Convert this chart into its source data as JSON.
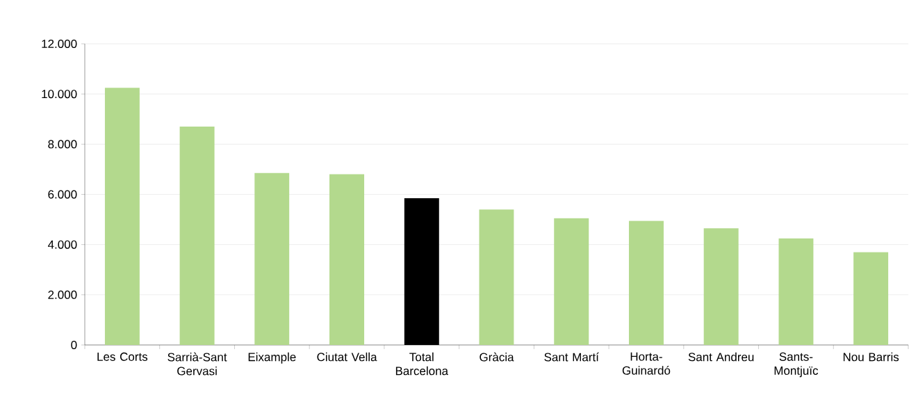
{
  "chart_data": {
    "type": "bar",
    "categories": [
      "Les Corts",
      "Sarrià-Sant Gervasi",
      "Eixample",
      "Ciutat Vella",
      "Total Barcelona",
      "Gràcia",
      "Sant Martí",
      "Horta-Guinardó",
      "Sant Andreu",
      "Sants-Montjuïc",
      "Nou Barris"
    ],
    "values": [
      10250,
      8700,
      6850,
      6800,
      5850,
      5400,
      5050,
      4950,
      4650,
      4250,
      3700
    ],
    "colors": [
      "#b3d98d",
      "#b3d98d",
      "#b3d98d",
      "#b3d98d",
      "#000000",
      "#b3d98d",
      "#b3d98d",
      "#b3d98d",
      "#b3d98d",
      "#b3d98d",
      "#b3d98d"
    ],
    "ylim": [
      0,
      12000
    ],
    "yticks": [
      {
        "value": 0,
        "label": "0"
      },
      {
        "value": 2000,
        "label": "2.000"
      },
      {
        "value": 4000,
        "label": "4.000"
      },
      {
        "value": 6000,
        "label": "6.000"
      },
      {
        "value": 8000,
        "label": "8.000"
      },
      {
        "value": 10000,
        "label": "10.000"
      },
      {
        "value": 12000,
        "label": "12.000"
      }
    ],
    "grid": "y"
  }
}
